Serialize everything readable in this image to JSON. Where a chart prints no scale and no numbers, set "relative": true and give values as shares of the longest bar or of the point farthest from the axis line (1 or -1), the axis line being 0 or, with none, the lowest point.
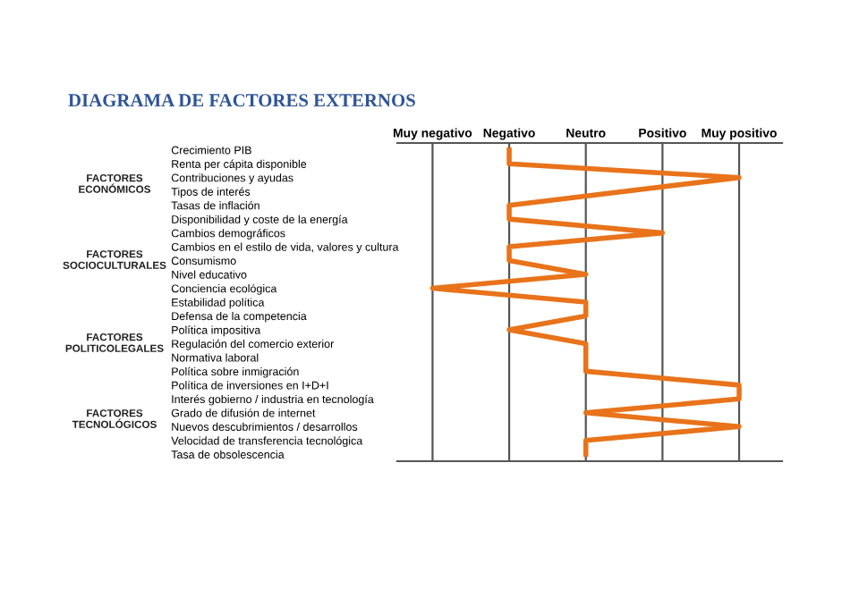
{
  "chart_data": {
    "type": "line",
    "orientation": "horizontal",
    "relative": true,
    "title": "DIAGRAMA DE FACTORES EXTERNOS",
    "categories": [
      "Crecimiento PIB",
      "Renta per cápita disponible",
      "Contribuciones y ayudas",
      "Tipos de interés",
      "Tasas de inflación",
      "Disponibilidad y coste de la energía",
      "Cambios demográficos",
      "Cambios en el estilo de vida, valores y cultura",
      "Consumismo",
      "Nivel educativo",
      "Conciencia ecológica",
      "Estabilidad política",
      "Defensa de la competencia",
      "Política impositiva",
      "Regulación del comercio exterior",
      "Normativa laboral",
      "Política sobre inmigración",
      "Política de inversiones en I+D+I",
      "Interés gobierno / industria en tecnología",
      "Grado de difusión de internet",
      "Nuevos descubrimientos / desarrollos",
      "Velocidad de transferencia tecnológica",
      "Tasa de obsolescencia"
    ],
    "series": [
      {
        "color": "#e8731a",
        "values": [
          -0.5,
          -0.5,
          1,
          null,
          -0.5,
          -0.5,
          0.5,
          -0.5,
          -0.5,
          0,
          -1,
          0,
          0,
          -0.5,
          0,
          0,
          0,
          1,
          1,
          0,
          1,
          0,
          0
        ]
      }
    ],
    "ref_lines": [
      {
        "axis": "x",
        "value": -1,
        "label": "Muy negativo",
        "color": "#555555"
      },
      {
        "axis": "x",
        "value": -0.5,
        "label": "Negativo",
        "color": "#555555"
      },
      {
        "axis": "x",
        "value": 0,
        "label": "Neutro",
        "color": "#555555"
      },
      {
        "axis": "x",
        "value": 0.5,
        "label": "Positivo",
        "color": "#555555"
      },
      {
        "axis": "x",
        "value": 1,
        "label": "Muy positivo",
        "color": "#555555"
      }
    ],
    "marker": "none",
    "line_style": "solid",
    "annotations": [
      "FACTORES\nECONÓMICOS",
      "FACTORES\nSOCIOCULTURALES",
      "FACTORES\nPOLITICOLEGALES",
      "FACTORES\nTECNOLÓGICOS"
    ]
  }
}
